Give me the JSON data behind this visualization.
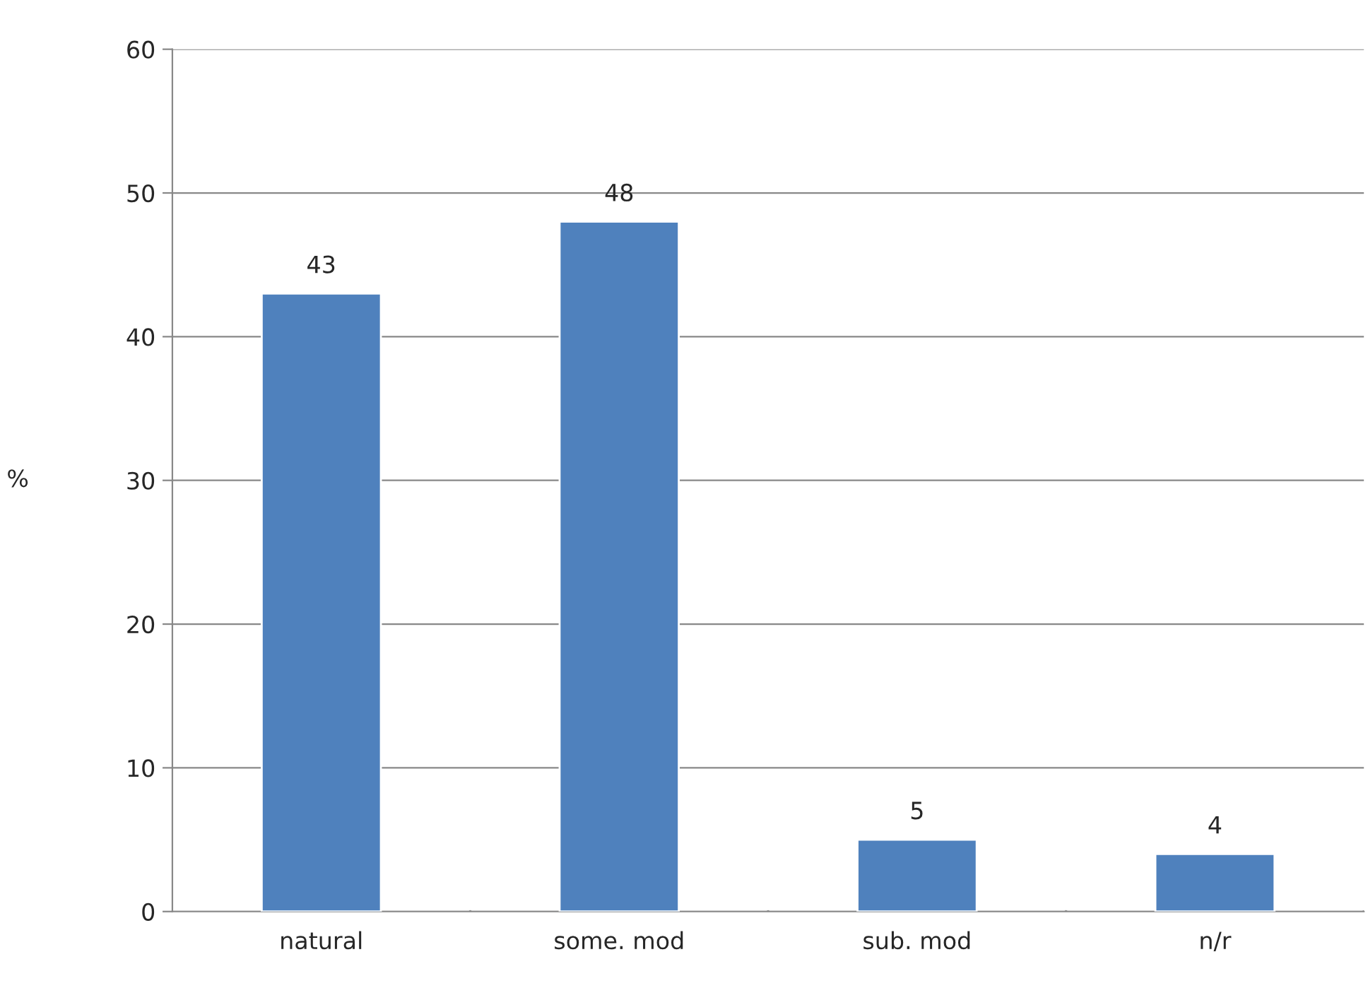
{
  "chart_data": {
    "type": "bar",
    "ylabel": "%",
    "categories": [
      "natural",
      "some. mod",
      "sub. mod",
      "n/r"
    ],
    "values": [
      43,
      48,
      5,
      4
    ],
    "color": "#4f81bd",
    "ylim": [
      0,
      60
    ],
    "yticks": [
      0,
      10,
      20,
      30,
      40,
      50,
      60
    ],
    "grid": "y",
    "data_labels": true
  }
}
